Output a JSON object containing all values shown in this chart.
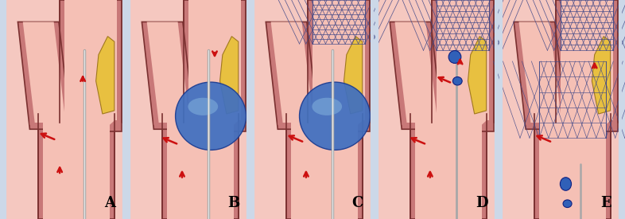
{
  "bg_color": "#ccd8e8",
  "panel_labels": [
    "A",
    "B",
    "C",
    "D",
    "E"
  ],
  "label_fontsize": 13,
  "wall_color": "#c87878",
  "wall_edge_color": "#7a3030",
  "lumen_color": "#f5c0b5",
  "plaque_fill": "#e8c040",
  "plaque_edge": "#a07820",
  "cath_gray": "#b0b0b0",
  "cath_light": "#e0e0e0",
  "balloon_fill": "#4070c0",
  "balloon_hi": "#88b8e0",
  "stent_col": "#404888",
  "arrow_col": "#cc1010",
  "emboli_col": "#3060b8",
  "figure_width": 7.86,
  "figure_height": 2.75,
  "dpi": 100
}
